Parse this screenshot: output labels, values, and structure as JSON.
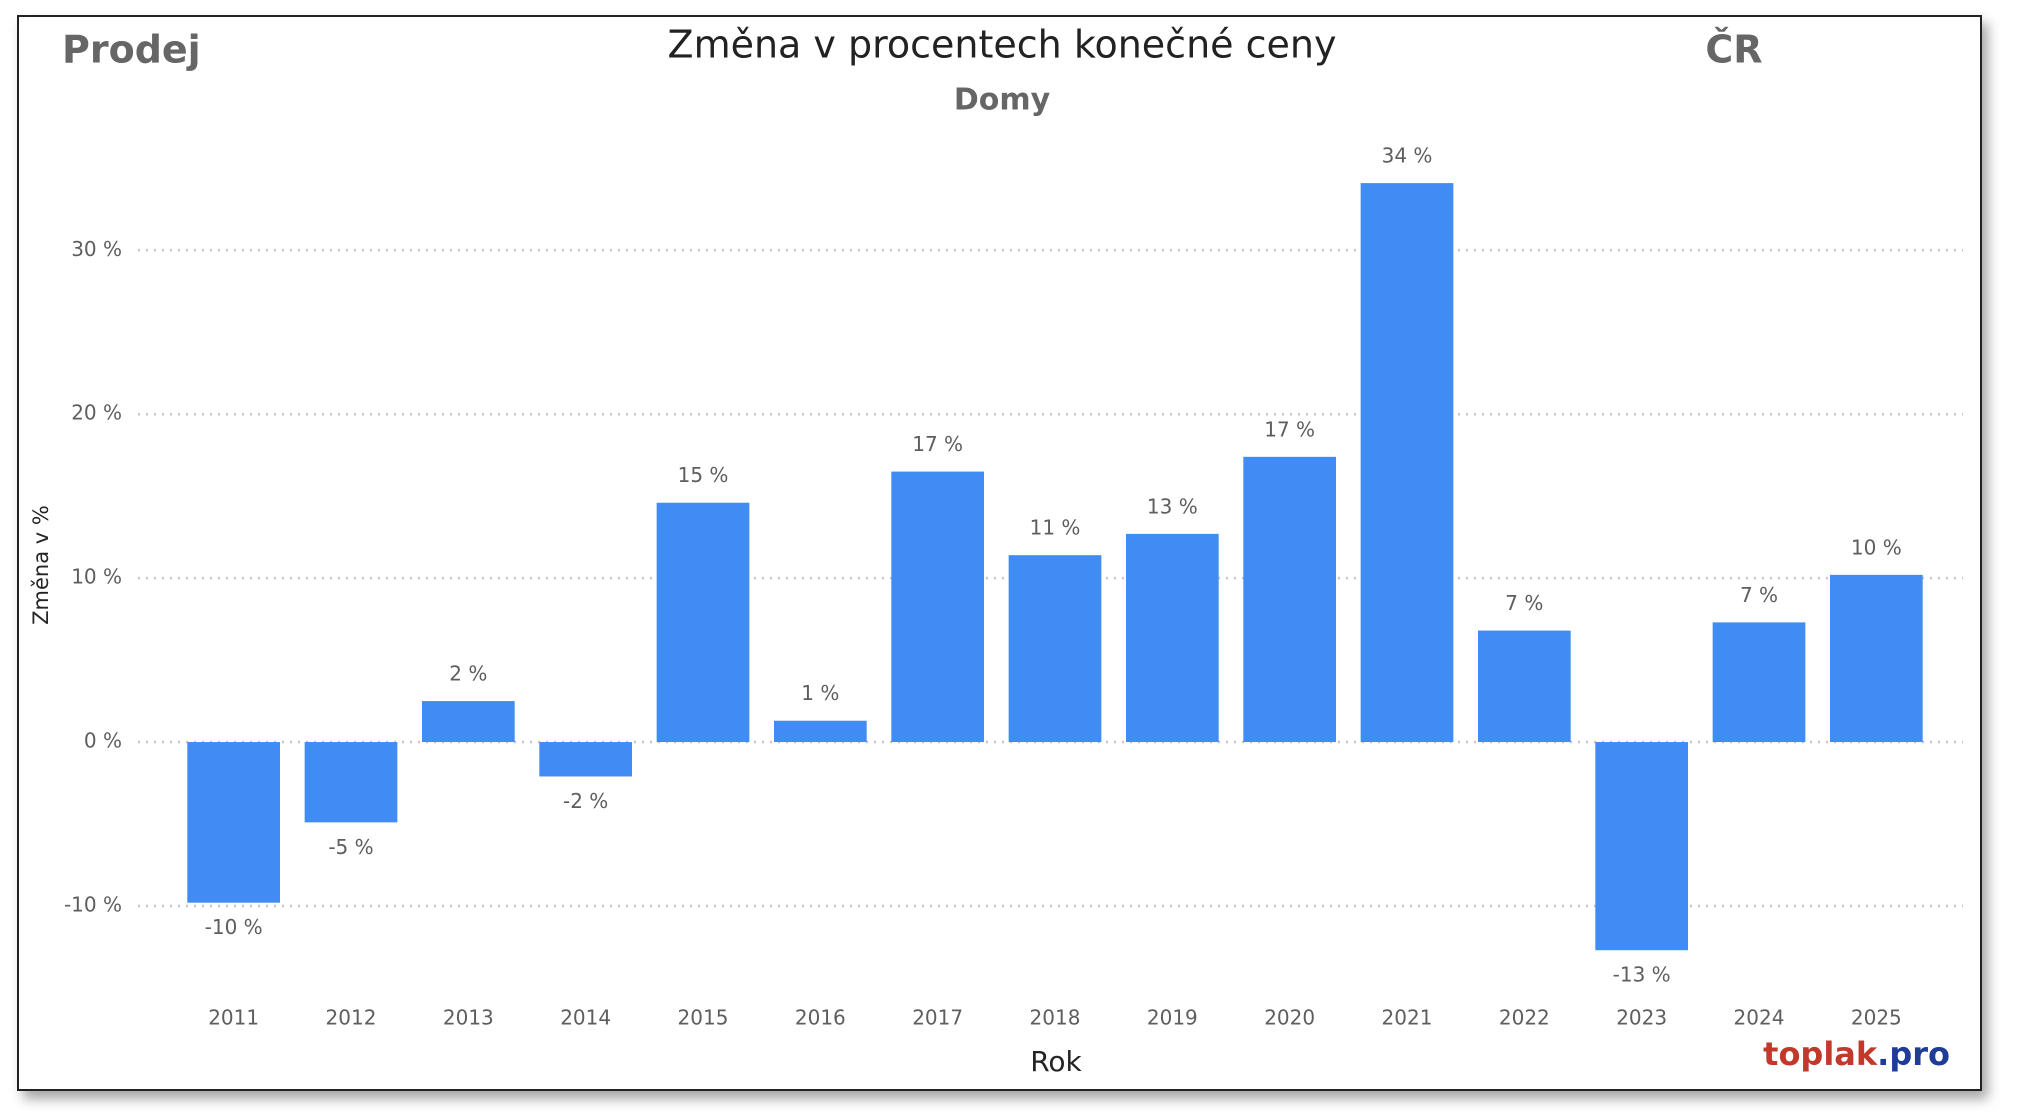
{
  "chart_data": {
    "type": "bar",
    "title": "Změna v procentech konečné ceny",
    "subtitle": "Domy",
    "corner_left": "Prodej",
    "corner_right": "ČR",
    "x_label": "Rok",
    "y_label": "Změna v %",
    "watermark": [
      "toplak",
      ".pro"
    ],
    "categories": [
      "2011",
      "2012",
      "2013",
      "2014",
      "2015",
      "2016",
      "2017",
      "2018",
      "2019",
      "2020",
      "2021",
      "2022",
      "2023",
      "2024",
      "2025"
    ],
    "values": [
      -9.8,
      -4.9,
      2.5,
      -2.1,
      14.6,
      1.3,
      16.5,
      11.4,
      12.7,
      17.4,
      34.1,
      6.8,
      -12.7,
      7.3,
      10.2
    ],
    "value_labels": [
      "-10 %",
      "-5 %",
      "2 %",
      "-2 %",
      "15 %",
      "1 %",
      "17 %",
      "11 %",
      "13 %",
      "17 %",
      "34 %",
      "7 %",
      "-13 %",
      "7 %",
      "10 %"
    ],
    "color": "#418bf5",
    "ylim": [
      -14.7,
      37.4
    ],
    "yticks": [
      {
        "value": -10,
        "label": "-10 %"
      },
      {
        "value": 0,
        "label": "0 %"
      },
      {
        "value": 10,
        "label": "10 %"
      },
      {
        "value": 20,
        "label": "20 %"
      },
      {
        "value": 30,
        "label": "30 %"
      }
    ],
    "grid": true
  }
}
